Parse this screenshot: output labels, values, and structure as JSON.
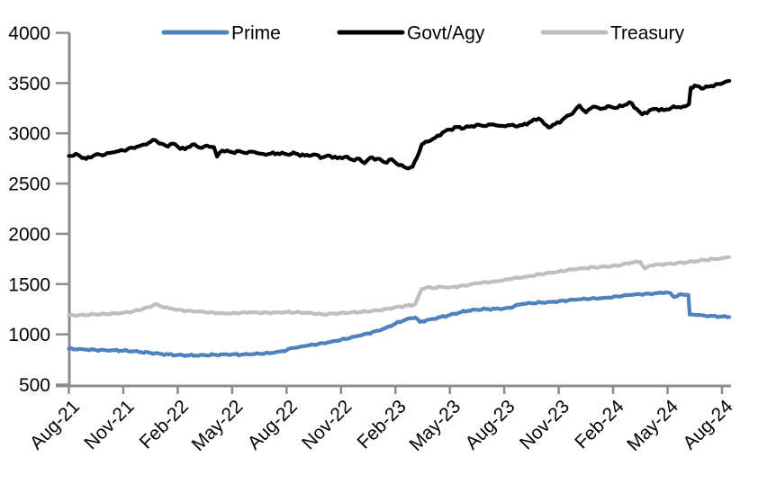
{
  "colors": {
    "background": "#ffffff",
    "axis": "#8c8c8c",
    "text": "#000000",
    "prime_blue": "#4f81bd",
    "govt_black": "#000000",
    "treasury_gray": "#bfbfbf"
  },
  "chart_data": {
    "type": "line",
    "title": "",
    "xlabel": "",
    "ylabel": "",
    "grid": false,
    "legend_position": "top",
    "x_unit": "months since Aug-2021 (0 = Aug-21)",
    "x_tick_interval_months": 3,
    "x_tick_labels": [
      "Aug-21",
      "Nov-21",
      "Feb-22",
      "May-22",
      "Aug-22",
      "Nov-22",
      "Feb-23",
      "May-23",
      "Aug-23",
      "Nov-23",
      "Feb-24",
      "May-24",
      "Aug-24"
    ],
    "ylim": [
      500,
      4000
    ],
    "y_tick_step": 500,
    "y_tick_labels": [
      500,
      1000,
      1500,
      2000,
      2500,
      3000,
      3500,
      4000
    ],
    "xlim_months": [
      0,
      36.4
    ],
    "series": [
      {
        "name": "Prime",
        "color": "#4f81bd",
        "points": [
          [
            0,
            855
          ],
          [
            0.5,
            850
          ],
          [
            1,
            847
          ],
          [
            1.5,
            845
          ],
          [
            2,
            843
          ],
          [
            2.5,
            841
          ],
          [
            3,
            837
          ],
          [
            3.5,
            831
          ],
          [
            4,
            824
          ],
          [
            4.5,
            816
          ],
          [
            5,
            807
          ],
          [
            5.5,
            799
          ],
          [
            6,
            794
          ],
          [
            6.5,
            791
          ],
          [
            7,
            789
          ],
          [
            7.5,
            792
          ],
          [
            8,
            796
          ],
          [
            8.5,
            800
          ],
          [
            9,
            802
          ],
          [
            9.5,
            798
          ],
          [
            10,
            801
          ],
          [
            10.5,
            806
          ],
          [
            11,
            813
          ],
          [
            11.5,
            826
          ],
          [
            12,
            843
          ],
          [
            12.3,
            863
          ],
          [
            12.7,
            874
          ],
          [
            13,
            883
          ],
          [
            13.5,
            896
          ],
          [
            14,
            913
          ],
          [
            14.5,
            929
          ],
          [
            15,
            946
          ],
          [
            15.5,
            963
          ],
          [
            16,
            986
          ],
          [
            16.5,
            1009
          ],
          [
            17,
            1036
          ],
          [
            17.5,
            1066
          ],
          [
            18,
            1106
          ],
          [
            18.5,
            1141
          ],
          [
            18.9,
            1160
          ],
          [
            19.1,
            1168
          ],
          [
            19.35,
            1122
          ],
          [
            19.7,
            1140
          ],
          [
            20,
            1152
          ],
          [
            20.5,
            1172
          ],
          [
            21,
            1192
          ],
          [
            21.5,
            1216
          ],
          [
            22,
            1236
          ],
          [
            22.5,
            1245
          ],
          [
            23,
            1251
          ],
          [
            23.5,
            1254
          ],
          [
            24,
            1258
          ],
          [
            24.4,
            1264
          ],
          [
            24.7,
            1296
          ],
          [
            25,
            1302
          ],
          [
            25.5,
            1308
          ],
          [
            26,
            1316
          ],
          [
            26.5,
            1322
          ],
          [
            27,
            1330
          ],
          [
            27.5,
            1337
          ],
          [
            28,
            1345
          ],
          [
            28.5,
            1351
          ],
          [
            29,
            1358
          ],
          [
            29.5,
            1364
          ],
          [
            30,
            1372
          ],
          [
            30.5,
            1381
          ],
          [
            31,
            1392
          ],
          [
            31.5,
            1398
          ],
          [
            32,
            1405
          ],
          [
            32.5,
            1412
          ],
          [
            32.9,
            1418
          ],
          [
            33.15,
            1412
          ],
          [
            33.35,
            1372
          ],
          [
            33.65,
            1396
          ],
          [
            34,
            1394
          ],
          [
            34.15,
            1392
          ],
          [
            34.22,
            1196
          ],
          [
            34.6,
            1192
          ],
          [
            35,
            1188
          ],
          [
            35.5,
            1182
          ],
          [
            36,
            1176
          ],
          [
            36.4,
            1172
          ]
        ]
      },
      {
        "name": "Govt/Agy",
        "color": "#000000",
        "points": [
          [
            0,
            2775
          ],
          [
            0.5,
            2788
          ],
          [
            0.95,
            2745
          ],
          [
            1.4,
            2782
          ],
          [
            2,
            2790
          ],
          [
            2.5,
            2812
          ],
          [
            3,
            2828
          ],
          [
            3.5,
            2858
          ],
          [
            4,
            2882
          ],
          [
            4.4,
            2905
          ],
          [
            4.75,
            2933
          ],
          [
            5.1,
            2898
          ],
          [
            5.35,
            2876
          ],
          [
            5.7,
            2898
          ],
          [
            6,
            2868
          ],
          [
            6.4,
            2842
          ],
          [
            6.8,
            2888
          ],
          [
            7.2,
            2858
          ],
          [
            7.6,
            2878
          ],
          [
            8,
            2862
          ],
          [
            8.17,
            2768
          ],
          [
            8.45,
            2828
          ],
          [
            9,
            2812
          ],
          [
            9.4,
            2825
          ],
          [
            9.8,
            2802
          ],
          [
            10.2,
            2816
          ],
          [
            10.6,
            2798
          ],
          [
            11,
            2794
          ],
          [
            11.5,
            2801
          ],
          [
            12,
            2792
          ],
          [
            12.5,
            2799
          ],
          [
            13,
            2778
          ],
          [
            13.5,
            2791
          ],
          [
            14,
            2762
          ],
          [
            14.4,
            2776
          ],
          [
            14.8,
            2752
          ],
          [
            15.2,
            2766
          ],
          [
            15.6,
            2738
          ],
          [
            16,
            2749
          ],
          [
            16.3,
            2702
          ],
          [
            16.6,
            2756
          ],
          [
            17,
            2748
          ],
          [
            17.4,
            2712
          ],
          [
            17.8,
            2742
          ],
          [
            18.2,
            2682
          ],
          [
            18.6,
            2655
          ],
          [
            18.95,
            2668
          ],
          [
            19.15,
            2745
          ],
          [
            19.45,
            2888
          ],
          [
            19.8,
            2918
          ],
          [
            20.2,
            2958
          ],
          [
            20.6,
            3008
          ],
          [
            21,
            3038
          ],
          [
            21.4,
            3062
          ],
          [
            21.8,
            3052
          ],
          [
            22.2,
            3072
          ],
          [
            22.6,
            3086
          ],
          [
            23,
            3072
          ],
          [
            23.4,
            3088
          ],
          [
            23.8,
            3074
          ],
          [
            24.2,
            3082
          ],
          [
            24.6,
            3070
          ],
          [
            25,
            3082
          ],
          [
            25.5,
            3118
          ],
          [
            25.9,
            3148
          ],
          [
            26.2,
            3095
          ],
          [
            26.45,
            3058
          ],
          [
            26.8,
            3092
          ],
          [
            27.2,
            3135
          ],
          [
            27.6,
            3182
          ],
          [
            27.9,
            3230
          ],
          [
            28.15,
            3278
          ],
          [
            28.5,
            3208
          ],
          [
            28.9,
            3266
          ],
          [
            29.3,
            3242
          ],
          [
            29.7,
            3272
          ],
          [
            30.1,
            3252
          ],
          [
            30.5,
            3270
          ],
          [
            30.9,
            3310
          ],
          [
            31.3,
            3242
          ],
          [
            31.6,
            3188
          ],
          [
            32,
            3228
          ],
          [
            32.4,
            3244
          ],
          [
            32.8,
            3230
          ],
          [
            33.2,
            3252
          ],
          [
            33.6,
            3262
          ],
          [
            34,
            3270
          ],
          [
            34.18,
            3290
          ],
          [
            34.28,
            3455
          ],
          [
            34.6,
            3470
          ],
          [
            35,
            3448
          ],
          [
            35.4,
            3472
          ],
          [
            35.8,
            3492
          ],
          [
            36.1,
            3505
          ],
          [
            36.4,
            3522
          ]
        ]
      },
      {
        "name": "Treasury",
        "color": "#bfbfbf",
        "points": [
          [
            0,
            1192
          ],
          [
            0.5,
            1190
          ],
          [
            1,
            1194
          ],
          [
            1.5,
            1198
          ],
          [
            2,
            1202
          ],
          [
            2.5,
            1208
          ],
          [
            3,
            1216
          ],
          [
            3.5,
            1228
          ],
          [
            4,
            1248
          ],
          [
            4.4,
            1272
          ],
          [
            4.75,
            1300
          ],
          [
            5.1,
            1278
          ],
          [
            5.5,
            1262
          ],
          [
            6,
            1246
          ],
          [
            6.5,
            1234
          ],
          [
            7,
            1226
          ],
          [
            7.5,
            1220
          ],
          [
            8,
            1215
          ],
          [
            8.5,
            1212
          ],
          [
            9,
            1210
          ],
          [
            9.5,
            1214
          ],
          [
            10,
            1217
          ],
          [
            10.5,
            1214
          ],
          [
            11,
            1216
          ],
          [
            11.5,
            1219
          ],
          [
            12,
            1221
          ],
          [
            12.5,
            1218
          ],
          [
            13,
            1214
          ],
          [
            13.5,
            1208
          ],
          [
            14,
            1200
          ],
          [
            14.5,
            1206
          ],
          [
            15,
            1212
          ],
          [
            15.5,
            1216
          ],
          [
            16,
            1222
          ],
          [
            16.5,
            1228
          ],
          [
            17,
            1238
          ],
          [
            17.5,
            1252
          ],
          [
            18,
            1270
          ],
          [
            18.5,
            1282
          ],
          [
            18.95,
            1290
          ],
          [
            19.1,
            1300
          ],
          [
            19.45,
            1452
          ],
          [
            19.7,
            1468
          ],
          [
            20,
            1460
          ],
          [
            20.5,
            1474
          ],
          [
            21,
            1468
          ],
          [
            21.5,
            1478
          ],
          [
            22,
            1488
          ],
          [
            22.5,
            1508
          ],
          [
            23,
            1518
          ],
          [
            23.5,
            1528
          ],
          [
            24,
            1542
          ],
          [
            24.5,
            1558
          ],
          [
            25,
            1564
          ],
          [
            25.5,
            1580
          ],
          [
            26,
            1600
          ],
          [
            26.5,
            1614
          ],
          [
            27,
            1624
          ],
          [
            27.5,
            1638
          ],
          [
            28,
            1650
          ],
          [
            28.5,
            1660
          ],
          [
            29,
            1668
          ],
          [
            29.5,
            1674
          ],
          [
            30,
            1680
          ],
          [
            30.5,
            1692
          ],
          [
            31,
            1714
          ],
          [
            31.5,
            1722
          ],
          [
            31.75,
            1655
          ],
          [
            32.1,
            1686
          ],
          [
            32.5,
            1695
          ],
          [
            33,
            1700
          ],
          [
            33.5,
            1708
          ],
          [
            34,
            1716
          ],
          [
            34.5,
            1726
          ],
          [
            35,
            1738
          ],
          [
            35.5,
            1748
          ],
          [
            36,
            1758
          ],
          [
            36.4,
            1768
          ]
        ]
      }
    ]
  }
}
